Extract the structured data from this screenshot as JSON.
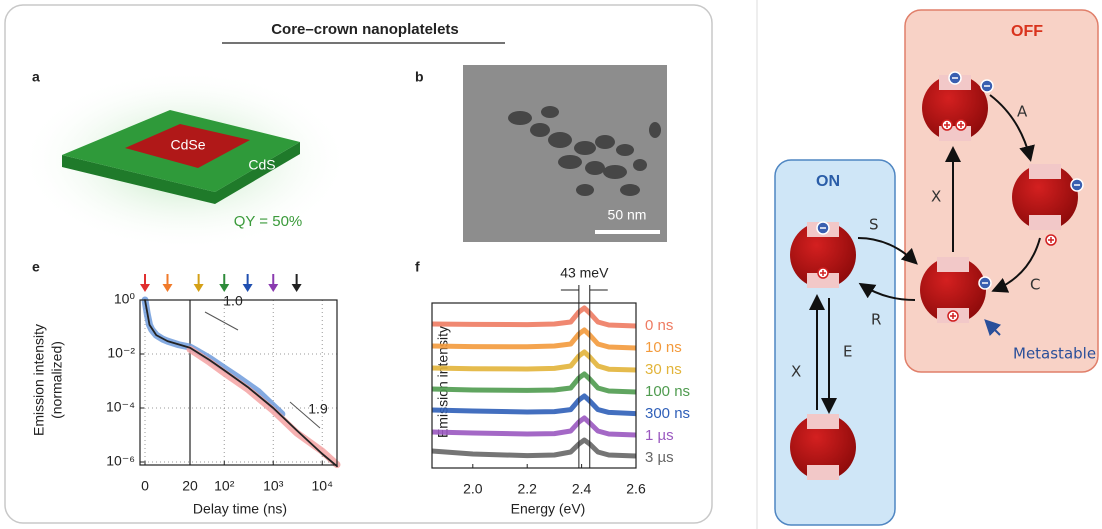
{
  "figure_title": "Core–crown nanoplatelets",
  "panel_a": {
    "label": "a",
    "core": "CdSe",
    "crown": "CdS",
    "qy": "QY = 50%"
  },
  "panel_b": {
    "label": "b",
    "scale_bar": "50 nm"
  },
  "panel_e": {
    "label": "e",
    "type": "line",
    "y_label": [
      "Emission intensity",
      "(normalized)"
    ],
    "x_label": "Delay time (ns)",
    "xlim": [
      0,
      20000
    ],
    "ylim": [
      1e-06,
      1
    ],
    "log_y": true,
    "grid": true,
    "xticks": [
      0,
      20,
      {
        "value": 100,
        "label": "10²"
      },
      {
        "value": 1000,
        "label": "10³"
      },
      {
        "value": 10000,
        "label": "10⁴"
      }
    ],
    "yticks": [
      {
        "value": 1,
        "label": "10⁰"
      },
      {
        "value": 0.01,
        "label": "10⁻²"
      },
      {
        "value": 0.0001,
        "label": "10⁻⁴"
      },
      {
        "value": 1e-06,
        "label": "10⁻⁶"
      }
    ],
    "annotations": [
      "1.0",
      "1.9"
    ],
    "markers": {
      "x": [
        0,
        10,
        30,
        100,
        300,
        1000,
        3000
      ],
      "colors": [
        "#e03030",
        "#f07a2a",
        "#d4a017",
        "#2e8b3a",
        "#1f4fb0",
        "#8a3bb0",
        "#222222"
      ]
    },
    "series": [
      {
        "color": "#6f9bdc",
        "x": [
          0,
          1,
          2,
          3,
          5,
          8,
          10,
          15,
          20,
          30,
          50,
          100,
          200,
          500,
          1000,
          1500
        ],
        "values": [
          1,
          0.3,
          0.12,
          0.08,
          0.05,
          0.035,
          0.03,
          0.022,
          0.018,
          0.012,
          0.007,
          0.003,
          0.0013,
          0.0004,
          0.00012,
          6e-05
        ]
      },
      {
        "color": "#f4a3a3",
        "x": [
          20,
          50,
          100,
          300,
          1000,
          3000,
          10000,
          20000
        ],
        "values": [
          0.015,
          0.005,
          0.002,
          0.0005,
          8e-05,
          1.2e-05,
          2.5e-06,
          8e-07
        ]
      },
      {
        "color": "#222222",
        "x": [
          0,
          2,
          5,
          10,
          20,
          50,
          100,
          300,
          1000,
          3000,
          10000,
          20000
        ],
        "values": [
          1,
          0.12,
          0.05,
          0.03,
          0.017,
          0.006,
          0.0025,
          0.0006,
          0.0001,
          1.5e-05,
          2e-06,
          7e-07
        ]
      }
    ]
  },
  "panel_f": {
    "label": "f",
    "type": "line",
    "y_label": "Emission intensity",
    "x_label": "Energy (eV)",
    "xlim": [
      1.85,
      2.6
    ],
    "xticks": [
      {
        "value": 2,
        "label": "2.0"
      },
      2.2,
      2.4,
      2.6
    ],
    "annotation": "43 meV",
    "marker_lines": [
      2.39,
      2.43
    ],
    "x": [
      1.85,
      2.0,
      2.2,
      2.3,
      2.36,
      2.39,
      2.41,
      2.43,
      2.46,
      2.5,
      2.6
    ],
    "series": [
      {
        "name": "0 ns",
        "color": "#ee7b62",
        "values": [
          0.2,
          0.18,
          0.17,
          0.2,
          0.3,
          0.8,
          1,
          0.75,
          0.3,
          0.15,
          0.1
        ]
      },
      {
        "name": "10 ns",
        "color": "#f39a3c",
        "values": [
          0.2,
          0.17,
          0.16,
          0.2,
          0.3,
          0.8,
          1,
          0.75,
          0.3,
          0.15,
          0.1
        ]
      },
      {
        "name": "30 ns",
        "color": "#e2b43a",
        "values": [
          0.2,
          0.16,
          0.15,
          0.18,
          0.3,
          0.8,
          1,
          0.75,
          0.3,
          0.14,
          0.1
        ]
      },
      {
        "name": "100 ns",
        "color": "#4f9b4f",
        "values": [
          0.25,
          0.2,
          0.18,
          0.2,
          0.3,
          0.8,
          1,
          0.75,
          0.3,
          0.15,
          0.1
        ]
      },
      {
        "name": "300 ns",
        "color": "#2f5fb8",
        "values": [
          0.3,
          0.25,
          0.2,
          0.22,
          0.32,
          0.8,
          1,
          0.75,
          0.32,
          0.18,
          0.12
        ]
      },
      {
        "name": "1 µs",
        "color": "#9a58c0",
        "values": [
          0.3,
          0.25,
          0.2,
          0.22,
          0.35,
          0.8,
          1,
          0.75,
          0.35,
          0.2,
          0.15
        ]
      },
      {
        "name": "3 µs",
        "color": "#666666",
        "values": [
          0.45,
          0.3,
          0.22,
          0.25,
          0.4,
          0.8,
          1,
          0.8,
          0.4,
          0.25,
          0.2
        ]
      }
    ]
  },
  "diagram": {
    "on": "ON",
    "off": "OFF",
    "transitions": [
      "A",
      "X",
      "S",
      "C",
      "R",
      "X",
      "E"
    ],
    "metastable": "Metastable"
  }
}
